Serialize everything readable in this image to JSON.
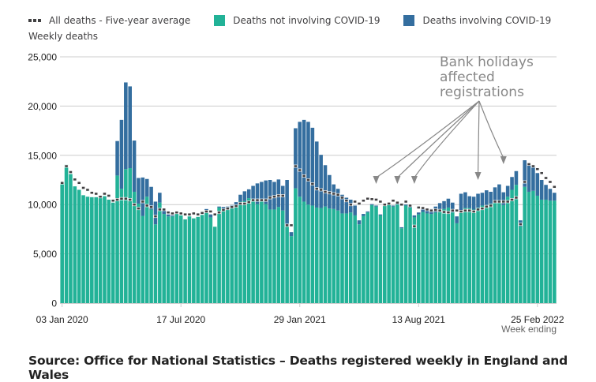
{
  "legend": [
    {
      "key": "average",
      "label": "All deaths - Five-year average"
    },
    {
      "key": "non_covid",
      "label": "Deaths not involving COVID-19"
    },
    {
      "key": "covid",
      "label": "Deaths involving COVID-19"
    }
  ],
  "colors": {
    "non_covid": "#22b297",
    "covid": "#346e9f",
    "average": "#414042",
    "grid": "#cccccc",
    "annotation": "#888888"
  },
  "source": "Source: Office for National Statistics – Deaths registered weekly in England and Wales",
  "chart_data": {
    "type": "bar",
    "stacked": true,
    "title": "",
    "ylabel": "Weekly deaths",
    "xlabel": "Week ending",
    "ylim": [
      0,
      25000
    ],
    "yticks": [
      0,
      5000,
      10000,
      15000,
      20000,
      25000
    ],
    "ytick_labels": [
      "0",
      "5,000",
      "10,000",
      "15,000",
      "20,000",
      "25,000"
    ],
    "grid": true,
    "legend_position": "top",
    "xtick_labels": [
      {
        "index": 0,
        "label": "03 Jan 2020"
      },
      {
        "index": 28,
        "label": "17 Jul 2020"
      },
      {
        "index": 56,
        "label": "29 Jan 2021"
      },
      {
        "index": 84,
        "label": "13 Aug 2021"
      },
      {
        "index": 112,
        "label": "25 Feb 2022"
      }
    ],
    "annotation": {
      "text": [
        "Bank holidays",
        "affected",
        "registrations"
      ],
      "targets": [
        74,
        79,
        83,
        98,
        117
      ]
    },
    "series": [
      {
        "name": "Deaths not involving COVID-19",
        "key": "non_covid",
        "values": [
          12250,
          14050,
          13100,
          11850,
          11500,
          10950,
          10800,
          10750,
          10750,
          10900,
          10850,
          10500,
          10200,
          12950,
          11600,
          13600,
          13700,
          11300,
          10100,
          8850,
          10800,
          9500,
          8000,
          10200,
          9050,
          8800,
          8800,
          9050,
          8900,
          8500,
          8800,
          8600,
          8750,
          8950,
          9350,
          8700,
          7750,
          9700,
          9450,
          9600,
          9750,
          9950,
          10300,
          10350,
          10650,
          10400,
          10050,
          10300,
          10050,
          9500,
          9500,
          9750,
          9400,
          7800,
          6800,
          11650,
          10800,
          10300,
          10000,
          9900,
          9700,
          9650,
          9800,
          9600,
          9550,
          9400,
          9100,
          9100,
          9200,
          8900,
          8000,
          8850,
          9200,
          9950,
          9800,
          8900,
          10000,
          10000,
          9800,
          10000,
          7600,
          9900,
          9700,
          8700,
          9000,
          9250,
          9100,
          9050,
          9200,
          9450,
          9550,
          9700,
          9200,
          8100,
          9300,
          9650,
          9650,
          9500,
          9700,
          9900,
          9950,
          10100,
          10350,
          10450,
          9950,
          10800,
          11500,
          12000,
          7800,
          11800,
          11300,
          11400,
          10900,
          10500,
          10500,
          10400,
          10400
        ],
        "values_note": "estimated from pixel heights"
      },
      {
        "name": "Deaths involving COVID-19",
        "key": "covid",
        "values": [
          0,
          0,
          0,
          0,
          0,
          0,
          0,
          0,
          0,
          0,
          0,
          0,
          0,
          3500,
          7000,
          8800,
          8300,
          5200,
          2600,
          3900,
          1800,
          2300,
          2300,
          1000,
          500,
          200,
          100,
          0,
          0,
          0,
          0,
          0,
          0,
          0,
          200,
          300,
          0,
          100,
          300,
          200,
          200,
          300,
          700,
          1000,
          900,
          1500,
          2100,
          2000,
          2400,
          3000,
          2800,
          2800,
          2500,
          4700,
          400,
          6100,
          7600,
          8300,
          8400,
          7900,
          6700,
          5400,
          4200,
          3400,
          2500,
          2200,
          1900,
          1600,
          1300,
          1000,
          400,
          200,
          100,
          100,
          100,
          100,
          100,
          100,
          100,
          100,
          100,
          100,
          100,
          200,
          200,
          300,
          400,
          500,
          600,
          700,
          800,
          900,
          1000,
          700,
          1800,
          1600,
          1200,
          1300,
          1400,
          1300,
          1500,
          1200,
          1400,
          1600,
          1300,
          1100,
          1300,
          1400,
          600,
          2700,
          2900,
          2500,
          2300,
          2000,
          1500,
          1200,
          800
        ],
        "values_note": "estimated from pixel heights"
      },
      {
        "name": "All deaths - Five-year average",
        "key": "average",
        "values": [
          12200,
          13900,
          13300,
          12550,
          12200,
          11700,
          11500,
          11200,
          11100,
          10800,
          11100,
          10900,
          10400,
          10500,
          10600,
          10600,
          10500,
          10000,
          9600,
          10300,
          9900,
          9750,
          8800,
          9500,
          9500,
          9200,
          9100,
          9200,
          9100,
          9000,
          9000,
          9100,
          9000,
          9150,
          9300,
          9300,
          9000,
          9200,
          9450,
          9600,
          9750,
          9850,
          10100,
          10100,
          10250,
          10450,
          10450,
          10450,
          10450,
          10700,
          10800,
          10900,
          10900,
          7900,
          7900,
          13900,
          13500,
          12900,
          12500,
          12100,
          11600,
          11500,
          11300,
          11200,
          11100,
          11000,
          10700,
          10400,
          10000,
          10300,
          10100,
          10400,
          10600,
          10550,
          10500,
          10300,
          10000,
          10100,
          10400,
          10200,
          10000,
          10300,
          9900,
          7800,
          9700,
          9650,
          9500,
          9400,
          9450,
          9400,
          9250,
          9200,
          9400,
          9400,
          9300,
          9400,
          9400,
          9300,
          9500,
          9600,
          9800,
          9900,
          10300,
          10300,
          10300,
          10300,
          10500,
          10700,
          8000,
          12300,
          14100,
          13900,
          13600,
          13200,
          12700,
          12300,
          11800
        ],
        "values_note": "estimated from pixel positions"
      }
    ]
  }
}
